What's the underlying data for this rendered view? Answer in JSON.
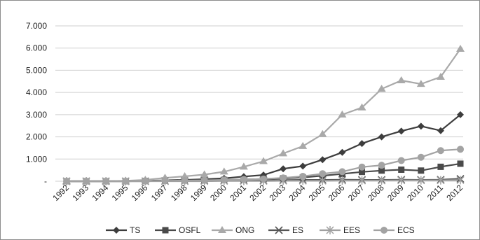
{
  "chart_data": {
    "type": "line",
    "title": "",
    "xlabel": "",
    "ylabel": "",
    "categories": [
      "1992",
      "1993",
      "1994",
      "1995",
      "1996",
      "1997",
      "1998",
      "1999",
      "2000",
      "2001",
      "2002",
      "2003",
      "2004",
      "2005",
      "2006",
      "2007",
      "2008",
      "2009",
      "2010",
      "2011",
      "2012"
    ],
    "ylim": [
      0,
      7000
    ],
    "y_ticks": [
      0,
      1000,
      2000,
      3000,
      4000,
      5000,
      6000,
      7000
    ],
    "y_tick_labels": [
      "-",
      "1.000",
      "2.000",
      "3.000",
      "4.000",
      "5.000",
      "6.000",
      "7.000"
    ],
    "grid": "horizontal",
    "legend_position": "bottom",
    "series": [
      {
        "name": "TS",
        "marker": "diamond",
        "color": "#3d3d3d",
        "values": [
          0,
          0,
          0,
          10,
          20,
          40,
          60,
          90,
          130,
          210,
          280,
          560,
          680,
          970,
          1300,
          1700,
          2000,
          2260,
          2480,
          2280,
          3000
        ]
      },
      {
        "name": "OSFL",
        "marker": "square",
        "color": "#4a4a4a",
        "values": [
          0,
          0,
          0,
          0,
          10,
          20,
          30,
          40,
          60,
          80,
          100,
          130,
          170,
          250,
          330,
          420,
          480,
          520,
          480,
          650,
          790
        ]
      },
      {
        "name": "ONG",
        "marker": "triangle",
        "color": "#a9a9a9",
        "values": [
          0,
          0,
          0,
          20,
          60,
          150,
          220,
          300,
          430,
          650,
          900,
          1250,
          1580,
          2120,
          3000,
          3320,
          4160,
          4540,
          4380,
          4700,
          5960
        ]
      },
      {
        "name": "ES",
        "marker": "x",
        "color": "#555555",
        "values": [
          0,
          0,
          0,
          0,
          0,
          10,
          10,
          20,
          20,
          30,
          40,
          50,
          60,
          60,
          70,
          60,
          60,
          70,
          60,
          70,
          110
        ]
      },
      {
        "name": "EES",
        "marker": "star",
        "color": "#a0a0a0",
        "values": [
          0,
          0,
          0,
          0,
          0,
          0,
          0,
          0,
          10,
          10,
          10,
          20,
          20,
          20,
          30,
          30,
          30,
          40,
          40,
          40,
          50
        ]
      },
      {
        "name": "ECS",
        "marker": "circle",
        "color": "#a3a3a3",
        "values": [
          0,
          0,
          0,
          0,
          10,
          20,
          30,
          40,
          60,
          80,
          100,
          150,
          220,
          340,
          430,
          640,
          720,
          930,
          1080,
          1380,
          1440
        ]
      }
    ]
  }
}
